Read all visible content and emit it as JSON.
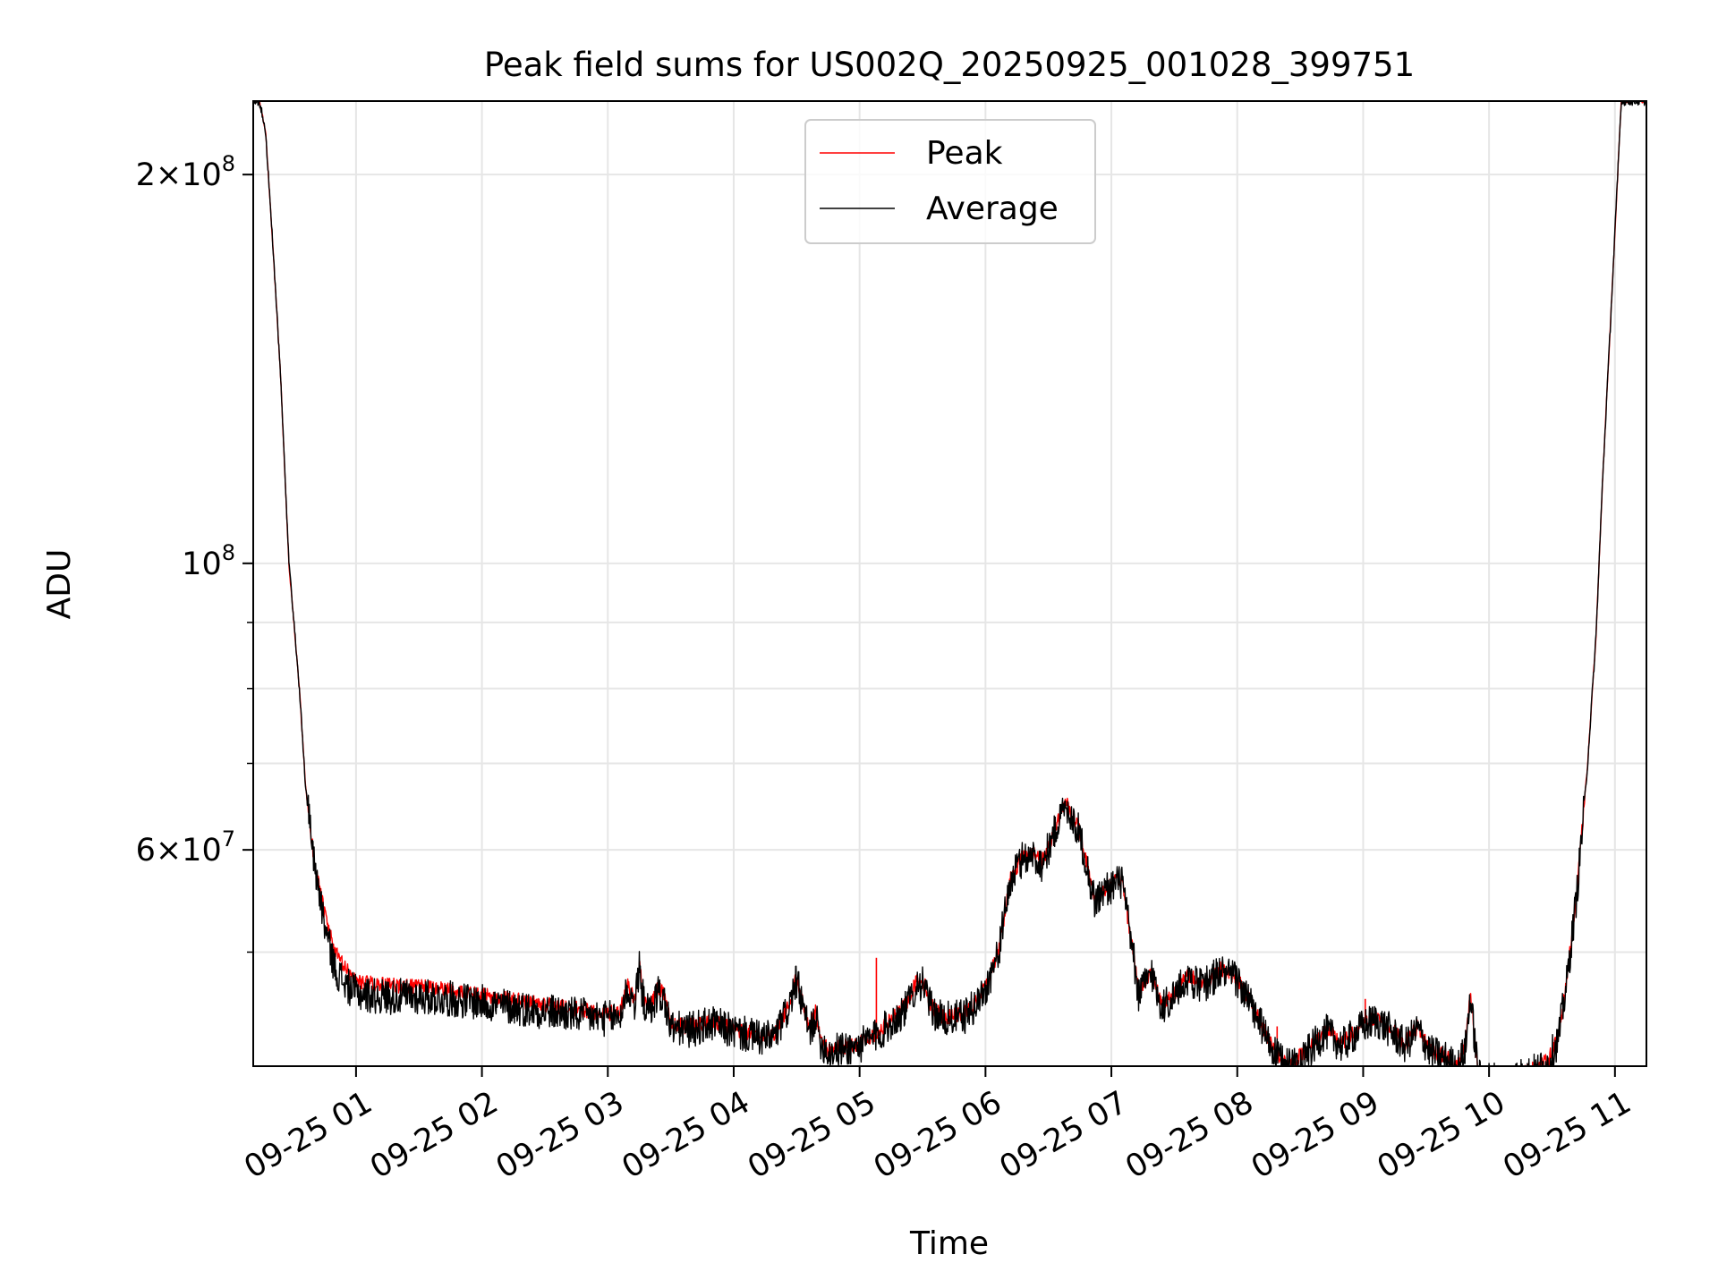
{
  "chart_data": {
    "type": "line",
    "title": "Peak field sums for US002Q_20250925_001028_399751",
    "xlabel": "Time",
    "ylabel": "ADU",
    "yscale": "log",
    "grid": true,
    "legend_position": "top-center",
    "xlim": [
      "09-25 00:11",
      "09-25 11:15"
    ],
    "ylim": [
      40800000.0,
      228000000.0
    ],
    "x_tick_labels": [
      "09-25 01",
      "09-25 02",
      "09-25 03",
      "09-25 04",
      "09-25 05",
      "09-25 06",
      "09-25 07",
      "09-25 08",
      "09-25 09",
      "09-25 10",
      "09-25 11"
    ],
    "x_ticks": [
      "09-25 01:00",
      "09-25 02:00",
      "09-25 03:00",
      "09-25 04:00",
      "09-25 05:00",
      "09-25 06:00",
      "09-25 07:00",
      "09-25 08:00",
      "09-25 09:00",
      "09-25 10:00",
      "09-25 11:00"
    ],
    "y_major_ticks": [
      {
        "value": 200000000.0,
        "mantissa": "2",
        "exponent": "8"
      },
      {
        "value": 100000000.0,
        "mantissa": "",
        "exponent": "8"
      },
      {
        "value": 60000000.0,
        "mantissa": "6",
        "exponent": "7"
      }
    ],
    "series": [
      {
        "name": "Peak",
        "color": "#ff0000",
        "noise": 0.006,
        "x": [
          "09-25 00:11",
          "09-25 00:14",
          "09-25 00:17",
          "09-25 00:20",
          "09-25 00:24",
          "09-25 00:28",
          "09-25 00:33",
          "09-25 00:36",
          "09-25 00:40",
          "09-25 00:45",
          "09-25 00:50",
          "09-25 00:55",
          "09-25 01:00",
          "09-25 01:10",
          "09-25 01:30",
          "09-25 01:45",
          "09-25 02:00",
          "09-25 02:20",
          "09-25 02:40",
          "09-25 03:00",
          "09-25 03:06",
          "09-25 03:09",
          "09-25 03:13",
          "09-25 03:15",
          "09-25 03:17",
          "09-25 03:20",
          "09-25 03:24",
          "09-25 03:27",
          "09-25 03:30",
          "09-25 03:38",
          "09-25 03:50",
          "09-25 04:00",
          "09-25 04:15",
          "09-25 04:20",
          "09-25 04:26",
          "09-25 04:30",
          "09-25 04:33",
          "09-25 04:36",
          "09-25 04:39",
          "09-25 04:41",
          "09-25 04:45",
          "09-25 04:50",
          "09-25 05:00",
          "09-25 05:10",
          "09-25 05:22",
          "09-25 05:28",
          "09-25 05:31",
          "09-25 05:34",
          "09-25 05:40",
          "09-25 05:50",
          "09-25 05:55",
          "09-25 06:00",
          "09-25 06:06",
          "09-25 06:12",
          "09-25 06:18",
          "09-25 06:22",
          "09-25 06:27",
          "09-25 06:31",
          "09-25 06:38",
          "09-25 06:45",
          "09-25 06:52",
          "09-25 06:58",
          "09-25 07:05",
          "09-25 07:10",
          "09-25 07:13",
          "09-25 07:19",
          "09-25 07:24",
          "09-25 07:30",
          "09-25 07:37",
          "09-25 07:43",
          "09-25 07:52",
          "09-25 08:00",
          "09-25 08:10",
          "09-25 08:18",
          "09-25 08:25",
          "09-25 08:35",
          "09-25 08:42",
          "09-25 08:50",
          "09-25 09:00",
          "09-25 09:06",
          "09-25 09:12",
          "09-25 09:20",
          "09-25 09:26",
          "09-25 09:32",
          "09-25 09:40",
          "09-25 09:45",
          "09-25 09:49",
          "09-25 09:51",
          "09-25 09:55",
          "09-25 10:05",
          "09-25 10:15",
          "09-25 10:23",
          "09-25 10:28",
          "09-25 10:33",
          "09-25 10:37",
          "09-25 10:42",
          "09-25 10:47",
          "09-25 10:51",
          "09-25 10:54",
          "09-25 10:58",
          "09-25 11:01",
          "09-25 11:03",
          "09-25 11:06",
          "09-25 11:10",
          "09-25 11:15"
        ],
        "y": [
          228000000.0,
          228000000.0,
          215000000.0,
          180000000.0,
          140000000.0,
          100000000.0,
          80000000.0,
          67000000.0,
          59000000.0,
          53500000.0,
          50000000.0,
          48500000.0,
          47500000.0,
          47200000.0,
          47000000.0,
          46700000.0,
          46300000.0,
          45800000.0,
          45300000.0,
          44800000.0,
          45000000.0,
          47200000.0,
          46000000.0,
          49000000.0,
          46200000.0,
          45200000.0,
          47000000.0,
          46200000.0,
          44000000.0,
          43800000.0,
          44200000.0,
          43600000.0,
          43000000.0,
          43300000.0,
          45500000.0,
          47800000.0,
          45600000.0,
          43500000.0,
          45000000.0,
          43000000.0,
          42000000.0,
          42200000.0,
          42500000.0,
          43500000.0,
          45500000.0,
          47800000.0,
          47200000.0,
          45500000.0,
          44500000.0,
          44800000.0,
          45600000.0,
          47000000.0,
          50000000.0,
          57000000.0,
          59500000.0,
          59700000.0,
          58800000.0,
          61000000.0,
          65500000.0,
          62000000.0,
          55000000.0,
          56200000.0,
          57000000.0,
          50500000.0,
          46500000.0,
          48500000.0,
          45500000.0,
          46500000.0,
          48000000.0,
          47200000.0,
          48500000.0,
          47800000.0,
          44500000.0,
          41800000.0,
          41000000.0,
          42200000.0,
          43600000.0,
          42500000.0,
          44000000.0,
          44500000.0,
          43800000.0,
          42500000.0,
          43800000.0,
          42000000.0,
          41500000.0,
          40800000.0,
          42500000.0,
          46500000.0,
          40200000.0,
          40000000.0,
          40300000.0,
          40700000.0,
          41200000.0,
          43000000.0,
          47500000.0,
          56000000.0,
          70000000.0,
          88000000.0,
          115000000.0,
          155000000.0,
          195000000.0,
          228000000.0,
          228000000.0,
          228000000.0,
          228000000.0
        ],
        "spikes": [
          [
            "09-25 05:08",
            49500000.0
          ],
          [
            "09-25 07:41",
            47800000.0
          ],
          [
            "09-25 08:19",
            43800000.0
          ],
          [
            "09-25 09:01",
            46000000.0
          ]
        ]
      },
      {
        "name": "Average",
        "color": "#000000",
        "noise": 0.014,
        "x": [
          "09-25 00:11",
          "09-25 00:14",
          "09-25 00:17",
          "09-25 00:20",
          "09-25 00:24",
          "09-25 00:28",
          "09-25 00:33",
          "09-25 00:36",
          "09-25 00:40",
          "09-25 00:45",
          "09-25 00:50",
          "09-25 00:55",
          "09-25 01:00",
          "09-25 01:10",
          "09-25 01:30",
          "09-25 01:45",
          "09-25 02:00",
          "09-25 02:20",
          "09-25 02:40",
          "09-25 03:00",
          "09-25 03:06",
          "09-25 03:09",
          "09-25 03:13",
          "09-25 03:15",
          "09-25 03:17",
          "09-25 03:20",
          "09-25 03:24",
          "09-25 03:27",
          "09-25 03:30",
          "09-25 03:38",
          "09-25 03:50",
          "09-25 04:00",
          "09-25 04:15",
          "09-25 04:20",
          "09-25 04:26",
          "09-25 04:30",
          "09-25 04:33",
          "09-25 04:36",
          "09-25 04:39",
          "09-25 04:41",
          "09-25 04:45",
          "09-25 04:50",
          "09-25 05:00",
          "09-25 05:10",
          "09-25 05:22",
          "09-25 05:28",
          "09-25 05:31",
          "09-25 05:34",
          "09-25 05:40",
          "09-25 05:50",
          "09-25 05:55",
          "09-25 06:00",
          "09-25 06:06",
          "09-25 06:12",
          "09-25 06:18",
          "09-25 06:22",
          "09-25 06:27",
          "09-25 06:31",
          "09-25 06:38",
          "09-25 06:45",
          "09-25 06:52",
          "09-25 06:58",
          "09-25 07:05",
          "09-25 07:10",
          "09-25 07:13",
          "09-25 07:19",
          "09-25 07:24",
          "09-25 07:30",
          "09-25 07:37",
          "09-25 07:43",
          "09-25 07:52",
          "09-25 08:00",
          "09-25 08:10",
          "09-25 08:18",
          "09-25 08:25",
          "09-25 08:35",
          "09-25 08:42",
          "09-25 08:50",
          "09-25 09:00",
          "09-25 09:06",
          "09-25 09:12",
          "09-25 09:20",
          "09-25 09:26",
          "09-25 09:32",
          "09-25 09:40",
          "09-25 09:45",
          "09-25 09:49",
          "09-25 09:51",
          "09-25 09:55",
          "09-25 10:05",
          "09-25 10:15",
          "09-25 10:23",
          "09-25 10:28",
          "09-25 10:33",
          "09-25 10:37",
          "09-25 10:42",
          "09-25 10:47",
          "09-25 10:51",
          "09-25 10:54",
          "09-25 10:58",
          "09-25 11:01",
          "09-25 11:03",
          "09-25 11:06",
          "09-25 11:10",
          "09-25 11:15"
        ],
        "y": [
          228000000.0,
          228000000.0,
          215000000.0,
          180000000.0,
          140000000.0,
          100000000.0,
          80000000.0,
          67000000.0,
          59000000.0,
          52500000.0,
          48500000.0,
          47200000.0,
          46500000.0,
          46200000.0,
          46200000.0,
          46000000.0,
          45700000.0,
          45200000.0,
          44800000.0,
          44400000.0,
          44600000.0,
          46800000.0,
          45600000.0,
          48600000.0,
          45800000.0,
          44800000.0,
          46600000.0,
          45800000.0,
          43700000.0,
          43500000.0,
          44000000.0,
          43400000.0,
          42800000.0,
          43100000.0,
          45200000.0,
          47500000.0,
          45300000.0,
          43200000.0,
          44700000.0,
          42800000.0,
          41800000.0,
          42000000.0,
          42300000.0,
          43300000.0,
          45200000.0,
          47500000.0,
          47000000.0,
          45200000.0,
          44300000.0,
          44600000.0,
          45400000.0,
          46800000.0,
          49800000.0,
          56800000.0,
          59200000.0,
          59400000.0,
          58500000.0,
          60700000.0,
          65200000.0,
          61700000.0,
          54700000.0,
          56000000.0,
          56800000.0,
          50200000.0,
          46300000.0,
          48300000.0,
          45300000.0,
          46300000.0,
          47800000.0,
          47000000.0,
          48300000.0,
          47600000.0,
          44300000.0,
          41600000.0,
          40800000.0,
          42000000.0,
          43400000.0,
          42300000.0,
          43800000.0,
          44300000.0,
          43600000.0,
          42300000.0,
          43600000.0,
          41800000.0,
          41300000.0,
          40600000.0,
          42300000.0,
          46300000.0,
          40000000.0,
          39800000.0,
          40100000.0,
          40500000.0,
          41000000.0,
          42800000.0,
          47300000.0,
          55800000.0,
          70000000.0,
          88000000.0,
          115000000.0,
          155000000.0,
          195000000.0,
          228000000.0,
          228000000.0,
          228000000.0,
          228000000.0
        ],
        "spikes": []
      }
    ]
  }
}
